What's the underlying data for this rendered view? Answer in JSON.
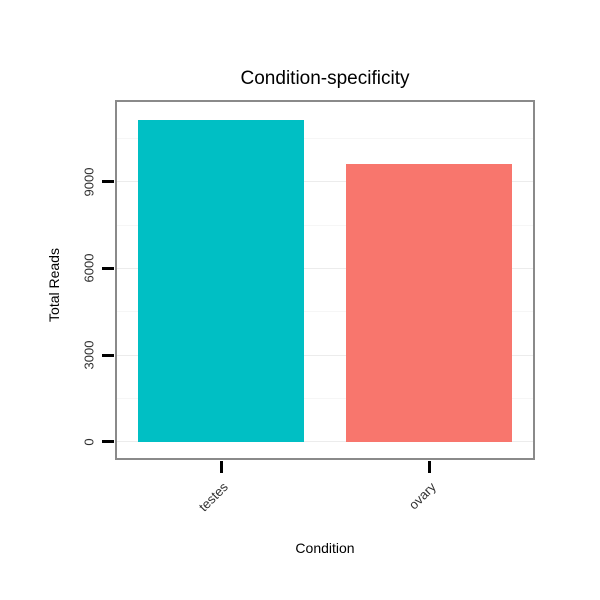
{
  "chart_data": {
    "type": "bar",
    "title": "Condition-specificity",
    "xlabel": "Condition",
    "ylabel": "Total Reads",
    "categories": [
      "testes",
      "ovary"
    ],
    "values": [
      11150,
      9600
    ],
    "bar_colors": [
      "#00BFC4",
      "#F8766D"
    ],
    "yticks": [
      0,
      3000,
      6000,
      9000
    ],
    "minor_yticks": [
      1500,
      4500,
      7500,
      10500
    ],
    "ylim": [
      -560,
      11760
    ],
    "grid": "horizontal major+minor",
    "legend": "none",
    "panel_border_color": "#8a8a8a",
    "gridline_major_color": "#ececec",
    "gridline_minor_color": "#f6f6f6",
    "tick_color": "#000000"
  }
}
